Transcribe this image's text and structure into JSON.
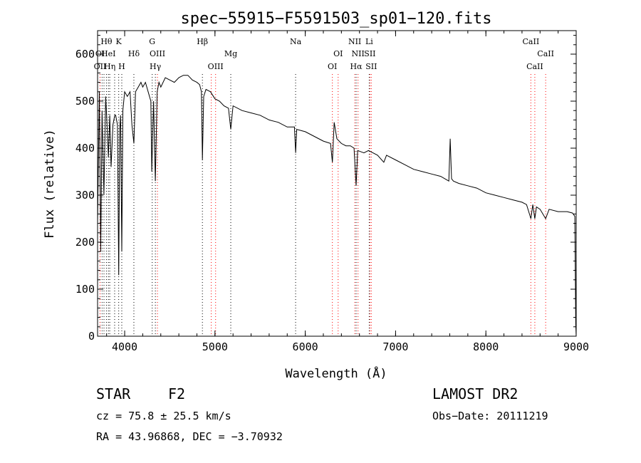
{
  "chart_data": {
    "type": "line",
    "title": "spec−55915−F5591503_sp01−120.fits",
    "xlabel": "Wavelength (Å)",
    "ylabel": "Flux (relative)",
    "xlim": [
      3700,
      9000
    ],
    "ylim": [
      0,
      650
    ],
    "xticks": [
      4000,
      5000,
      6000,
      7000,
      8000,
      9000
    ],
    "yticks": [
      0,
      100,
      200,
      300,
      400,
      500,
      600
    ],
    "grid": false,
    "series": [
      {
        "x": [
          3700,
          3720,
          3735,
          3750,
          3770,
          3790,
          3800,
          3820,
          3835,
          3850,
          3870,
          3890,
          3900,
          3910,
          3920,
          3934,
          3945,
          3955,
          3968,
          3980,
          4000,
          4030,
          4060,
          4080,
          4102,
          4120,
          4150,
          4180,
          4200,
          4230,
          4260,
          4290,
          4300,
          4320,
          4340,
          4360,
          4380,
          4400,
          4450,
          4500,
          4550,
          4600,
          4650,
          4700,
          4750,
          4800,
          4830,
          4850,
          4861,
          4875,
          4900,
          4950,
          5000,
          5050,
          5100,
          5150,
          5175,
          5200,
          5300,
          5400,
          5500,
          5600,
          5700,
          5800,
          5880,
          5893,
          5905,
          6000,
          6100,
          6200,
          6280,
          6300,
          6320,
          6350,
          6400,
          6450,
          6500,
          6540,
          6563,
          6580,
          6650,
          6700,
          6800,
          6870,
          6900,
          7000,
          7100,
          7200,
          7300,
          7400,
          7500,
          7590,
          7605,
          7620,
          7640,
          7700,
          7800,
          7900,
          8000,
          8100,
          8200,
          8300,
          8400,
          8450,
          8498,
          8520,
          8542,
          8560,
          8600,
          8662,
          8700,
          8800,
          8900,
          8960,
          8985,
          8995,
          9000
        ],
        "y": [
          240,
          520,
          180,
          480,
          300,
          510,
          470,
          380,
          470,
          360,
          450,
          470,
          470,
          460,
          450,
          130,
          440,
          470,
          180,
          480,
          520,
          510,
          520,
          450,
          410,
          520,
          530,
          540,
          530,
          540,
          520,
          500,
          350,
          500,
          330,
          520,
          540,
          530,
          550,
          545,
          540,
          550,
          555,
          555,
          545,
          540,
          535,
          520,
          375,
          510,
          525,
          520,
          505,
          500,
          490,
          485,
          440,
          490,
          480,
          475,
          470,
          460,
          455,
          445,
          445,
          390,
          440,
          435,
          425,
          415,
          410,
          370,
          455,
          420,
          410,
          405,
          405,
          400,
          320,
          395,
          390,
          395,
          385,
          370,
          385,
          375,
          365,
          355,
          350,
          345,
          340,
          330,
          420,
          335,
          330,
          325,
          320,
          315,
          305,
          300,
          295,
          290,
          285,
          280,
          250,
          280,
          250,
          275,
          270,
          250,
          270,
          265,
          265,
          262,
          255,
          25,
          0
        ]
      }
    ],
    "line_markers": [
      {
        "label": "Hθ",
        "x": 3798,
        "color": "#000000",
        "row": 0
      },
      {
        "label": "K",
        "x": 3934,
        "color": "#000000",
        "row": 0
      },
      {
        "label": "G",
        "x": 4305,
        "color": "#000000",
        "row": 0
      },
      {
        "label": "Hβ",
        "x": 4861,
        "color": "#000000",
        "row": 0
      },
      {
        "label": "Na",
        "x": 5893,
        "color": "#000000",
        "row": 0
      },
      {
        "label": "NII",
        "x": 6548,
        "color": "#ff0000",
        "row": 0
      },
      {
        "label": "Li",
        "x": 6708,
        "color": "#000000",
        "row": 0
      },
      {
        "label": "CaII",
        "x": 8498,
        "color": "#ff0000",
        "row": 0
      },
      {
        "label": "OI",
        "x": 3728,
        "color": "#ff0000",
        "row": 1
      },
      {
        "label": "HeI",
        "x": 3820,
        "color": "#000000",
        "row": 1
      },
      {
        "label": "Hδ",
        "x": 4102,
        "color": "#000000",
        "row": 1
      },
      {
        "label": "OIII",
        "x": 4363,
        "color": "#ff0000",
        "row": 1
      },
      {
        "label": "Mg",
        "x": 5175,
        "color": "#000000",
        "row": 1
      },
      {
        "label": "OI",
        "x": 6364,
        "color": "#ff0000",
        "row": 1
      },
      {
        "label": "NII",
        "x": 6584,
        "color": "#ff0000",
        "row": 1
      },
      {
        "label": "SII",
        "x": 6716,
        "color": "#ff0000",
        "row": 1
      },
      {
        "label": "CaII",
        "x": 8662,
        "color": "#ff0000",
        "row": 1
      },
      {
        "label": "OII",
        "x": 3727,
        "color": "#ff0000",
        "row": 2
      },
      {
        "label": "Hη",
        "x": 3835,
        "color": "#000000",
        "row": 2
      },
      {
        "label": "H",
        "x": 3968,
        "color": "#000000",
        "row": 2
      },
      {
        "label": "Hγ",
        "x": 4340,
        "color": "#000000",
        "row": 2
      },
      {
        "label": "OIII",
        "x": 5007,
        "color": "#ff0000",
        "row": 2
      },
      {
        "label": "OI",
        "x": 6300,
        "color": "#ff0000",
        "row": 2
      },
      {
        "label": "Hα",
        "x": 6563,
        "color": "#000000",
        "row": 2
      },
      {
        "label": "SII",
        "x": 6731,
        "color": "#ff0000",
        "row": 2
      },
      {
        "label": "CaII",
        "x": 8542,
        "color": "#ff0000",
        "row": 2
      }
    ],
    "extra_marker_lines": [
      {
        "x": 3750,
        "color": "#000000"
      },
      {
        "x": 3771,
        "color": "#000000"
      },
      {
        "x": 3889,
        "color": "#000000"
      },
      {
        "x": 4959,
        "color": "#ff0000"
      }
    ]
  },
  "info": {
    "class": "STAR",
    "subclass": "F2",
    "survey": "LAMOST DR2",
    "cz": "cz = 75.8 ± 25.5 km/s",
    "obs_date": "Obs−Date: 20111219",
    "coords": "RA =  43.96868, DEC =  −3.70932"
  }
}
